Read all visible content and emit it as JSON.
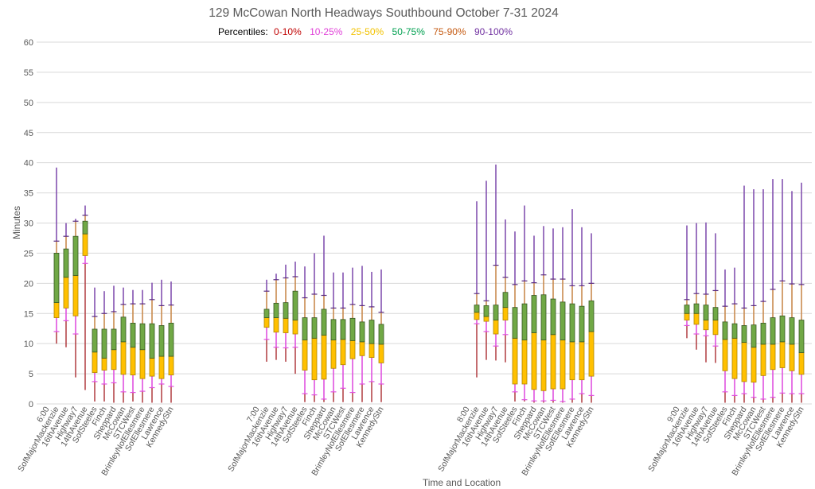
{
  "chart_data": {
    "type": "box",
    "title": "129 McCowan North Headways Southbound October 7-31 2024",
    "legend": {
      "label": "Percentiles:",
      "placement": "top",
      "entries": [
        {
          "name": "0-10%",
          "color": "#c00000"
        },
        {
          "name": "10-25%",
          "color": "#e040d8"
        },
        {
          "name": "25-50%",
          "color": "#f2c200"
        },
        {
          "name": "50-75%",
          "color": "#00a050"
        },
        {
          "name": "75-90%",
          "color": "#c55a11"
        },
        {
          "name": "90-100%",
          "color": "#7030a0"
        }
      ]
    },
    "xlabel": "Time and Location",
    "ylabel": "Minutes",
    "ylim": [
      0,
      60
    ],
    "yticks": [
      0,
      5,
      10,
      15,
      20,
      25,
      30,
      35,
      40,
      45,
      50,
      55,
      60
    ],
    "grid": true,
    "stations": [
      "SofMajorMackenzie",
      "16thAvenue",
      "Highway7",
      "14thAvenue",
      "SofSteeles",
      "Finch",
      "Sheppard",
      "McCowan",
      "STCWest",
      "BrimleyNofEllesmere",
      "SofEllesmere",
      "Lawrence",
      "KennedyStn"
    ],
    "stat_order": [
      "min",
      "p10",
      "p25",
      "median",
      "p75",
      "p90",
      "max"
    ],
    "groups": [
      {
        "time": "6:00",
        "boxes": [
          [
            10.0,
            12.0,
            14.3,
            16.8,
            25.0,
            27.0,
            39.2
          ],
          [
            9.4,
            13.8,
            15.9,
            21.0,
            25.7,
            27.8,
            30.0
          ],
          [
            4.4,
            11.6,
            14.6,
            21.3,
            27.8,
            30.3,
            30.7
          ],
          [
            2.3,
            23.3,
            24.6,
            28.2,
            30.3,
            31.3,
            32.9
          ],
          [
            0.4,
            3.7,
            5.2,
            8.6,
            12.4,
            14.5,
            19.3
          ],
          [
            0.4,
            3.3,
            5.6,
            7.6,
            12.4,
            15.0,
            18.7
          ],
          [
            0.2,
            3.5,
            5.7,
            9.0,
            12.4,
            15.3,
            19.6
          ],
          [
            0.2,
            2.0,
            4.9,
            10.3,
            14.4,
            16.5,
            19.3
          ],
          [
            0.4,
            1.9,
            4.8,
            9.4,
            13.4,
            16.6,
            18.9
          ],
          [
            0.2,
            2.1,
            4.2,
            9.0,
            13.3,
            16.6,
            18.9
          ],
          [
            0.2,
            2.7,
            4.6,
            7.6,
            13.3,
            17.3,
            20.1
          ],
          [
            0.2,
            3.3,
            4.2,
            7.9,
            13.0,
            16.3,
            20.6
          ],
          [
            0.2,
            2.9,
            4.8,
            7.9,
            13.4,
            16.4,
            20.3
          ]
        ]
      },
      {
        "time": "7:00",
        "boxes": [
          [
            7.0,
            10.7,
            12.7,
            14.3,
            15.7,
            18.7,
            20.6
          ],
          [
            7.3,
            9.4,
            11.9,
            14.3,
            16.7,
            20.6,
            21.6
          ],
          [
            7.0,
            9.3,
            11.8,
            14.2,
            16.8,
            20.9,
            23.1
          ],
          [
            5.0,
            9.4,
            11.6,
            13.9,
            18.7,
            21.1,
            23.6
          ],
          [
            0.3,
            1.7,
            5.6,
            10.6,
            14.3,
            17.6,
            22.8
          ],
          [
            0.3,
            1.5,
            4.0,
            10.9,
            14.3,
            18.2,
            25.0
          ],
          [
            0.3,
            0.8,
            4.1,
            11.4,
            15.7,
            18.0,
            27.9
          ],
          [
            0.3,
            2.0,
            5.9,
            10.6,
            14.0,
            15.9,
            21.8
          ],
          [
            0.3,
            2.6,
            6.5,
            10.7,
            14.0,
            15.9,
            21.8
          ],
          [
            0.3,
            1.9,
            7.5,
            10.5,
            14.2,
            16.5,
            22.6
          ],
          [
            0.3,
            3.3,
            8.0,
            10.3,
            13.6,
            16.3,
            22.9
          ],
          [
            0.3,
            3.7,
            7.7,
            10.0,
            13.9,
            16.1,
            21.9
          ],
          [
            0.3,
            3.3,
            6.8,
            9.9,
            13.2,
            15.2,
            22.3
          ]
        ]
      },
      {
        "time": "8:00",
        "boxes": [
          [
            4.4,
            13.3,
            14.0,
            15.2,
            16.4,
            18.3,
            33.6
          ],
          [
            7.3,
            12.0,
            13.7,
            14.5,
            16.3,
            17.1,
            37.0
          ],
          [
            7.2,
            9.6,
            11.6,
            13.9,
            16.4,
            23.0,
            39.7
          ],
          [
            6.9,
            11.5,
            13.9,
            16.0,
            18.5,
            21.0,
            30.6
          ],
          [
            0.4,
            2.0,
            3.3,
            10.9,
            16.0,
            19.8,
            28.6
          ],
          [
            0.4,
            0.7,
            3.3,
            10.6,
            16.6,
            20.4,
            32.9
          ],
          [
            0.2,
            0.5,
            2.4,
            11.8,
            18.0,
            20.1,
            27.9
          ],
          [
            0.2,
            0.5,
            2.2,
            10.6,
            18.1,
            21.4,
            29.5
          ],
          [
            0.2,
            0.6,
            2.5,
            11.5,
            17.4,
            20.7,
            29.1
          ],
          [
            0.2,
            0.4,
            2.5,
            10.6,
            16.9,
            20.7,
            29.3
          ],
          [
            0.2,
            0.8,
            4.0,
            10.3,
            16.6,
            19.6,
            32.3
          ],
          [
            0.2,
            1.7,
            4.0,
            10.3,
            16.2,
            19.6,
            29.3
          ],
          [
            0.2,
            1.4,
            4.6,
            12.0,
            17.1,
            20.0,
            28.3
          ]
        ]
      },
      {
        "time": "9:00",
        "boxes": [
          [
            10.9,
            13.0,
            13.9,
            15.0,
            16.4,
            17.3,
            29.6
          ],
          [
            9.0,
            11.6,
            13.2,
            15.0,
            16.6,
            18.3,
            30.0
          ],
          [
            6.9,
            11.3,
            12.3,
            13.9,
            16.4,
            18.2,
            30.1
          ],
          [
            6.8,
            9.6,
            11.5,
            13.9,
            16.0,
            18.8,
            28.3
          ],
          [
            0.2,
            2.0,
            5.5,
            10.7,
            13.6,
            16.2,
            22.3
          ],
          [
            0.2,
            1.4,
            4.2,
            10.9,
            13.3,
            16.6,
            22.6
          ],
          [
            0.2,
            1.7,
            3.7,
            10.2,
            13.0,
            15.9,
            36.2
          ],
          [
            0.2,
            1.1,
            3.6,
            9.4,
            13.1,
            16.3,
            35.6
          ],
          [
            0.2,
            0.8,
            4.7,
            9.9,
            13.4,
            17.0,
            35.6
          ],
          [
            0.2,
            1.1,
            5.7,
            9.9,
            14.3,
            19.0,
            37.3
          ],
          [
            0.2,
            1.8,
            6.0,
            10.3,
            14.6,
            20.4,
            37.3
          ],
          [
            0.2,
            1.7,
            5.5,
            9.9,
            14.3,
            19.9,
            35.3
          ],
          [
            0.2,
            1.7,
            4.9,
            8.5,
            13.9,
            19.8,
            36.7
          ]
        ]
      }
    ]
  },
  "style": {
    "whisker_low": "#b5474b",
    "whisker_p10_p25": "#e052e0",
    "box_lower": "#ffc000",
    "box_lower_stroke": "#b08600",
    "box_upper": "#70a845",
    "box_upper_stroke": "#385723",
    "whisker_p75_p90": "#c98a4e",
    "whisker_top": "#8352b0",
    "tick_p10": "#e052e0",
    "tick_p90": "#5a2d82",
    "grid": "#d9d9d9",
    "axis_text": "#595959"
  }
}
